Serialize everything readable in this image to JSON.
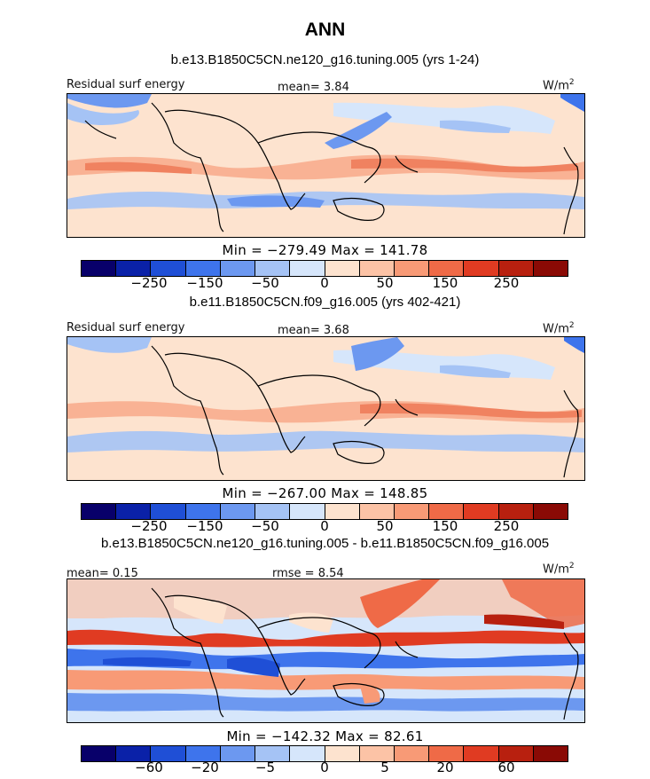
{
  "title": "ANN",
  "panels": [
    {
      "case": "b.e13.B1850C5CN.ne120_g16.tuning.005 (yrs 1-24)",
      "label": "Residual surf energy",
      "stat1": "mean=   3.84",
      "stat2": "",
      "units": "W/m",
      "units_sup": "2",
      "minmax": "Min = −279.49 Max = 141.78",
      "ticks": [
        "−250",
        "−150",
        "−50",
        "0",
        "50",
        "150",
        "250"
      ]
    },
    {
      "case": "b.e11.B1850C5CN.f09_g16.005 (yrs 402-421)",
      "label": "Residual surf energy",
      "stat1": "mean=   3.68",
      "stat2": "",
      "units": "W/m",
      "units_sup": "2",
      "minmax": "Min = −267.00 Max = 148.85",
      "ticks": [
        "−250",
        "−150",
        "−50",
        "0",
        "50",
        "150",
        "250"
      ]
    },
    {
      "case": "b.e13.B1850C5CN.ne120_g16.tuning.005 - b.e11.B1850C5CN.f09_g16.005",
      "label": "",
      "stat1": "mean=   0.15",
      "stat2": "rmse =   8.54",
      "units": "W/m",
      "units_sup": "2",
      "minmax": "Min = −142.32 Max =  82.61",
      "ticks": [
        "−60",
        "−20",
        "−5",
        "0",
        "5",
        "20",
        "60"
      ]
    }
  ],
  "colorbar_colors": [
    "#08006a",
    "#0a21a8",
    "#1f4fd6",
    "#3e74ec",
    "#6c98f0",
    "#a5c3f5",
    "#d6e6fb",
    "#fde3cf",
    "#fcc3a6",
    "#f89a76",
    "#ef6a47",
    "#e03b22",
    "#b8200f",
    "#8a0a05"
  ]
}
